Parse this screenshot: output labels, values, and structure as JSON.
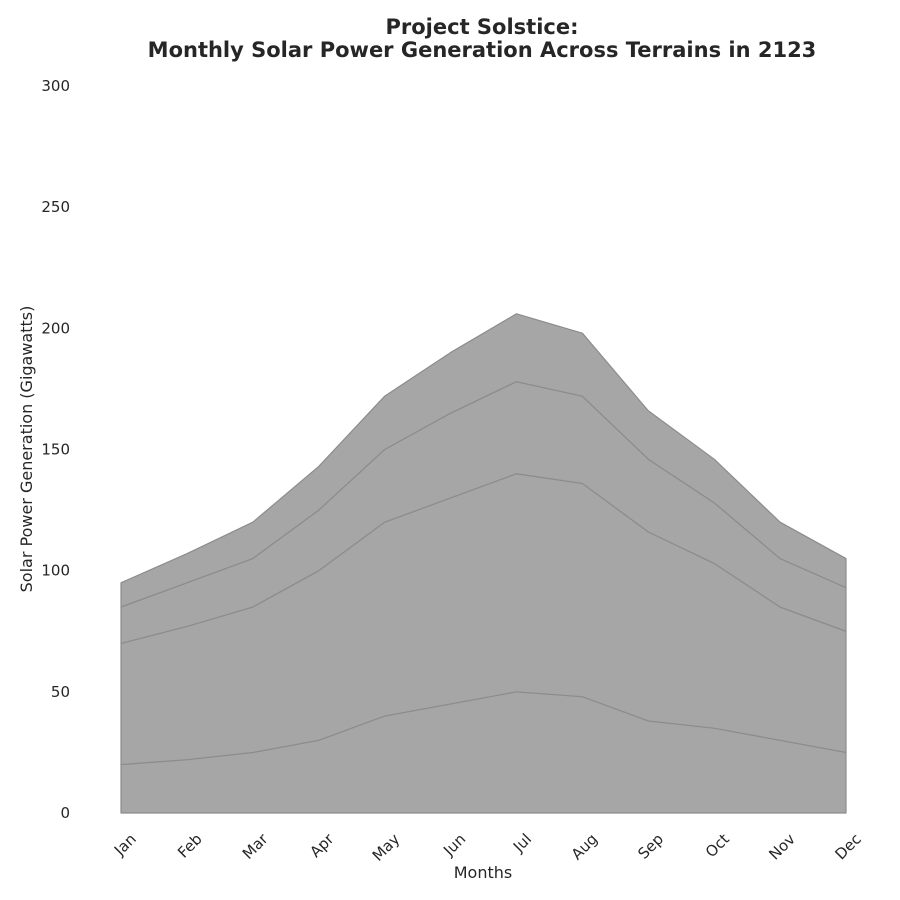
{
  "chart_data": {
    "type": "area",
    "stacked": true,
    "title_line1": "Project Solstice:",
    "title_line2": "Monthly Solar Power Generation Across Terrains in 2123",
    "xlabel": "Months",
    "ylabel": "Solar Power Generation (Gigawatts)",
    "categories": [
      "Jan",
      "Feb",
      "Mar",
      "Apr",
      "May",
      "Jun",
      "Jul",
      "Aug",
      "Sep",
      "Oct",
      "Nov",
      "Dec"
    ],
    "ylim": [
      0,
      300
    ],
    "yticks": [
      "0",
      "50",
      "100",
      "150",
      "200",
      "250",
      "300"
    ],
    "grid": false,
    "fill_color": "#a6a6a6",
    "line_color": "#8c8c8c",
    "series": [
      {
        "values": [
          20,
          22,
          25,
          30,
          40,
          45,
          50,
          48,
          38,
          35,
          30,
          25
        ]
      },
      {
        "values": [
          50,
          55,
          60,
          70,
          80,
          85,
          90,
          88,
          78,
          68,
          55,
          50
        ]
      },
      {
        "values": [
          15,
          18,
          20,
          25,
          30,
          35,
          38,
          36,
          30,
          25,
          20,
          18
        ]
      },
      {
        "values": [
          10,
          12,
          15,
          18,
          22,
          25,
          28,
          26,
          20,
          18,
          15,
          12
        ]
      }
    ]
  }
}
